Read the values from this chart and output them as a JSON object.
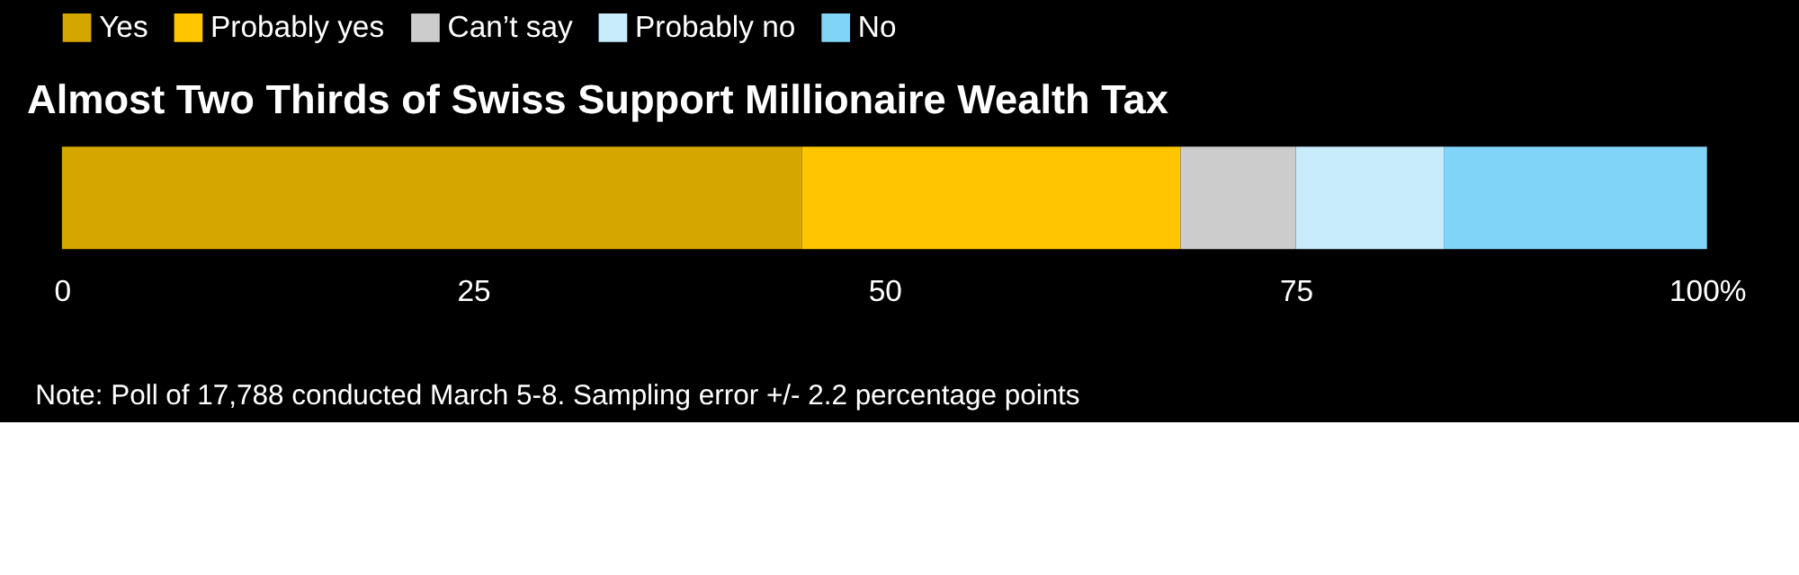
{
  "chart_data": {
    "type": "bar",
    "orientation": "horizontal",
    "stacked": true,
    "title": "Almost Two Thirds of Swiss Support Millionaire Wealth Tax",
    "categories": [
      null
    ],
    "series": [
      {
        "name": "Yes",
        "color": "#d6a600",
        "values": [
          45
        ]
      },
      {
        "name": "Probably yes",
        "color": "#ffc500",
        "values": [
          23
        ]
      },
      {
        "name": "Can’t say",
        "color": "#cccccc",
        "values": [
          7
        ]
      },
      {
        "name": "Probably no",
        "color": "#c9ecfb",
        "values": [
          9
        ]
      },
      {
        "name": "No",
        "color": "#80d4f6",
        "values": [
          16
        ]
      }
    ],
    "xlim": [
      0,
      100
    ],
    "xticks": [
      0,
      25,
      50,
      75,
      {
        "value": 100,
        "label": "100%"
      }
    ],
    "grid": false,
    "legend": "top",
    "annotations": [
      "Note: Poll of 17,788 conducted March 5-8. Sampling error +/- 2.2 percentage points"
    ]
  }
}
